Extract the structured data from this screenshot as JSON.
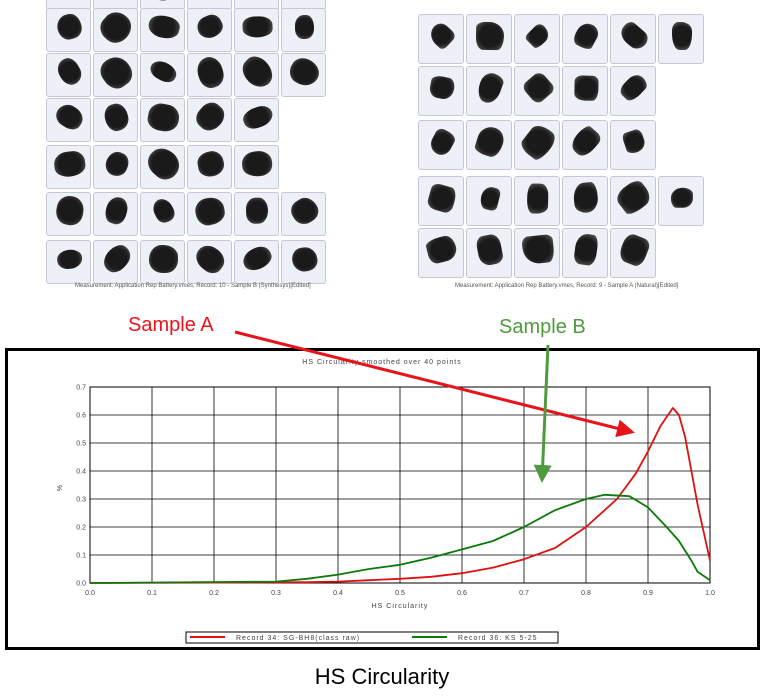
{
  "panels": {
    "left_caption": "Measurement: Application Rep Battery.vmes, Record: 10 - Sample B (Synthesys)[Edited]",
    "right_caption": "Measurement: Application Rep Battery.vmes, Record: 9 - Sample A (Natural)[Edited]"
  },
  "annotations": {
    "sample_a": {
      "label": "Sample A",
      "color": "#e8141c"
    },
    "sample_b": {
      "label": "Sample B",
      "color": "#4e9a3e"
    }
  },
  "bottom_caption": "HS Circularity",
  "chart_data": {
    "type": "line",
    "title": "HS Circularity smoothed over 40 points",
    "xlabel": "HS Circularity",
    "ylabel": "%",
    "xlim": [
      0,
      1.0
    ],
    "ylim": [
      0,
      0.7
    ],
    "xticks": [
      "0.0",
      "0.1",
      "0.2",
      "0.3",
      "0.4",
      "0.5",
      "0.6",
      "0.7",
      "0.8",
      "0.9",
      "1.0"
    ],
    "yticks": [
      "0.0",
      "0.1",
      "0.2",
      "0.3",
      "0.4",
      "0.5",
      "0.6",
      "0.7"
    ],
    "grid": true,
    "legend": "bottom",
    "series": [
      {
        "name": "Record 34: SG-BH8(class raw)",
        "color": "#e01010",
        "x": [
          0,
          0.3,
          0.35,
          0.4,
          0.45,
          0.5,
          0.55,
          0.6,
          0.65,
          0.7,
          0.75,
          0.8,
          0.85,
          0.88,
          0.9,
          0.92,
          0.94,
          0.95,
          0.96,
          0.97,
          0.98,
          0.99,
          1.0
        ],
        "y": [
          0,
          0.002,
          0.003,
          0.005,
          0.01,
          0.015,
          0.022,
          0.035,
          0.055,
          0.085,
          0.125,
          0.2,
          0.3,
          0.39,
          0.47,
          0.56,
          0.625,
          0.6,
          0.52,
          0.4,
          0.28,
          0.18,
          0.08
        ]
      },
      {
        "name": "Record 36: KS 5-25",
        "color": "#0a7a0a",
        "x": [
          0,
          0.3,
          0.35,
          0.4,
          0.45,
          0.5,
          0.55,
          0.6,
          0.65,
          0.7,
          0.75,
          0.8,
          0.83,
          0.87,
          0.9,
          0.93,
          0.95,
          0.97,
          0.98,
          1.0
        ],
        "y": [
          0,
          0.005,
          0.015,
          0.03,
          0.05,
          0.065,
          0.09,
          0.12,
          0.15,
          0.2,
          0.26,
          0.3,
          0.315,
          0.31,
          0.27,
          0.2,
          0.15,
          0.08,
          0.04,
          0.01
        ]
      }
    ]
  }
}
